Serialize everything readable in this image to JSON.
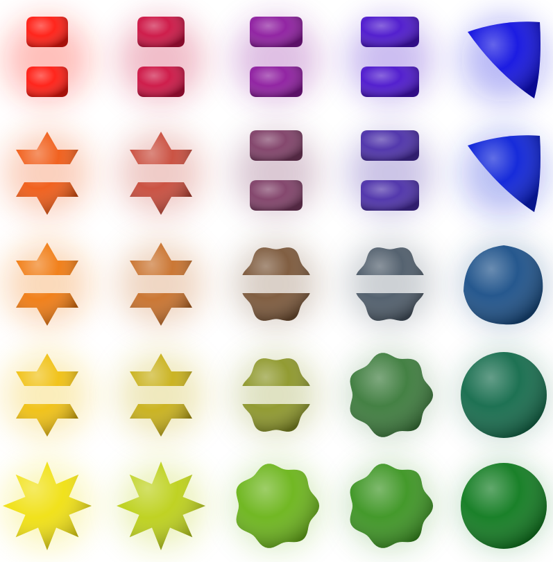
{
  "scene": {
    "background": "#ffffff",
    "rows": [
      {
        "colors": [
          "#ff1a10",
          "#cc1242",
          "#8c1a9e",
          "#4a14cc",
          "#1010e0"
        ],
        "forms": [
          "cube-split",
          "cube-split",
          "cube-split",
          "cube-split",
          "tetra"
        ]
      },
      {
        "colors": [
          "#f05a14",
          "#c84a3a",
          "#7e3e66",
          "#4a2ea8",
          "#0a20d8"
        ],
        "forms": [
          "spiky-split",
          "spiky-split",
          "cube-split",
          "cube-split",
          "tetra"
        ]
      },
      {
        "colors": [
          "#f07a10",
          "#c8702a",
          "#7a5638",
          "#4c5a68",
          "#1a4f88"
        ],
        "forms": [
          "spiky-split",
          "spiky-split",
          "lumpy-split",
          "lumpy-split",
          "blob"
        ]
      },
      {
        "colors": [
          "#f0c010",
          "#c8b018",
          "#8c9628",
          "#3a7a3a",
          "#126a4a"
        ],
        "forms": [
          "spiky-split",
          "spiky-split",
          "lumpy-split",
          "lumpy",
          "sphere"
        ]
      },
      {
        "colors": [
          "#f0e010",
          "#bcd018",
          "#6ab418",
          "#3a9420",
          "#0e7a1e"
        ],
        "forms": [
          "spiky",
          "spiky",
          "lumpy",
          "lumpy",
          "sphere"
        ]
      }
    ]
  }
}
